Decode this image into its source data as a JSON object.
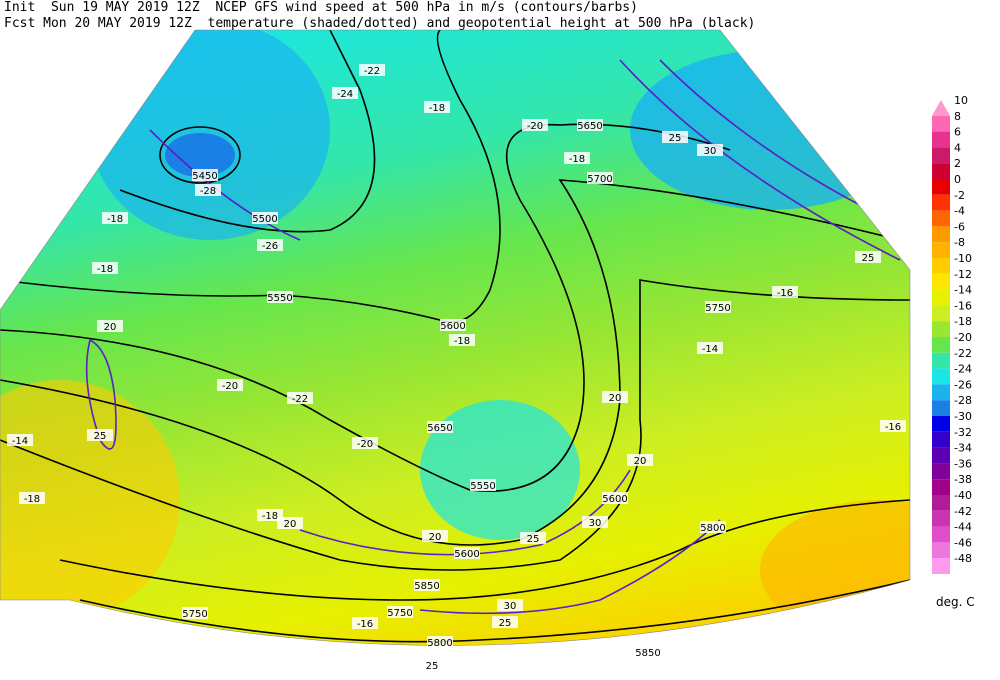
{
  "header": {
    "line1": "Init  Sun 19 MAY 2019 12Z  NCEP GFS wind speed at 500 hPa in m/s (contours/barbs)",
    "line2": "Fcst Mon 20 MAY 2019 12Z  temperature (shaded/dotted) and geopotential height at 500 hPa (black)"
  },
  "colorbar": {
    "unit": "deg. C",
    "levels": [
      10,
      8,
      6,
      4,
      2,
      0,
      -2,
      -4,
      -6,
      -8,
      -10,
      -12,
      -14,
      -16,
      -18,
      -20,
      -22,
      -24,
      -26,
      -28,
      -30,
      -32,
      -34,
      -36,
      -38,
      -40,
      -42,
      -44,
      -46,
      -48
    ],
    "colors": [
      "#ff99cc",
      "#ff66b3",
      "#e6338f",
      "#cc1a66",
      "#cc0033",
      "#e60000",
      "#ff3300",
      "#ff6600",
      "#ff9900",
      "#ffb300",
      "#ffcc00",
      "#ffe600",
      "#e6f000",
      "#ccee22",
      "#99e633",
      "#66e64d",
      "#33e6aa",
      "#1ae6e6",
      "#1ab3f0",
      "#1a80e6",
      "#0000e6",
      "#3300cc",
      "#5c00b3",
      "#80009a",
      "#a0008a",
      "#b31a99",
      "#cc33b3",
      "#e04dcc",
      "#ee77dd",
      "#ff99ee"
    ]
  },
  "map_labels": [
    "5450",
    "-28",
    "5500",
    "-26",
    "5550",
    "-24",
    "-22",
    "-18",
    "-20",
    "5650",
    "-18",
    "5700",
    "25",
    "30",
    "-18",
    "-18",
    "20",
    "25",
    "-14",
    "-18",
    "-20",
    "-22",
    "5600",
    "-18",
    "5650",
    "-20",
    "5550",
    "20",
    "5600",
    "25",
    "30",
    "5600",
    "20",
    "20",
    "5800",
    "5750",
    "-16",
    "-14",
    "-16",
    "25",
    "5850",
    "5750",
    "5750",
    "-16",
    "30",
    "25",
    "5800",
    "25",
    "5850",
    "-18",
    "20"
  ]
}
